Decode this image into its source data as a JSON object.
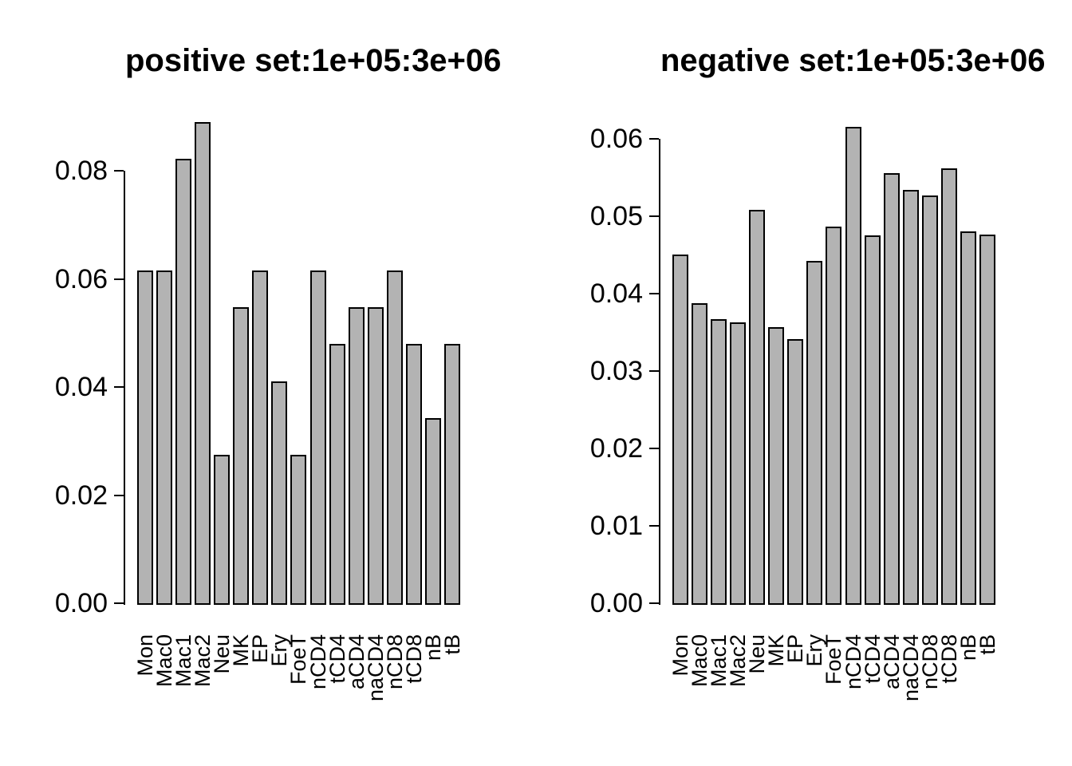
{
  "figure": {
    "background": "#ffffff",
    "bar_fill": "#b3b3b3",
    "bar_border": "#000000",
    "text_color": "#000000"
  },
  "chart_data": [
    {
      "type": "bar",
      "title": "positive set:1e+05:3e+06",
      "categories": [
        "Mon",
        "Mac0",
        "Mac1",
        "Mac2",
        "Neu",
        "MK",
        "EP",
        "Ery",
        "FoeT",
        "nCD4",
        "tCD4",
        "aCD4",
        "naCD4",
        "nCD8",
        "tCD8",
        "nB",
        "tB"
      ],
      "values": [
        0.0616,
        0.0616,
        0.0822,
        0.089,
        0.0274,
        0.0548,
        0.0616,
        0.0411,
        0.0274,
        0.0616,
        0.0479,
        0.0548,
        0.0548,
        0.0616,
        0.0479,
        0.0342,
        0.0479
      ],
      "xlabel": "",
      "ylabel": "",
      "ylim": [
        0,
        0.08
      ],
      "y_ticks": [
        0,
        0.02,
        0.04,
        0.06,
        0.08
      ],
      "y_tick_labels": [
        "0.00",
        "0.02",
        "0.04",
        "0.06",
        "0.08"
      ],
      "grid": "off",
      "legend": "none"
    },
    {
      "type": "bar",
      "title": "negative set:1e+05:3e+06",
      "categories": [
        "Mon",
        "Mac0",
        "Mac1",
        "Mac2",
        "Neu",
        "MK",
        "EP",
        "Ery",
        "FoeT",
        "nCD4",
        "tCD4",
        "aCD4",
        "naCD4",
        "nCD8",
        "tCD8",
        "nB",
        "tB"
      ],
      "values": [
        0.0451,
        0.0388,
        0.0367,
        0.0363,
        0.0508,
        0.0357,
        0.0341,
        0.0443,
        0.0487,
        0.0616,
        0.0475,
        0.0556,
        0.0534,
        0.0527,
        0.0562,
        0.0481,
        0.0477
      ],
      "xlabel": "",
      "ylabel": "",
      "ylim": [
        0,
        0.06
      ],
      "y_ticks": [
        0,
        0.01,
        0.02,
        0.03,
        0.04,
        0.05,
        0.06
      ],
      "y_tick_labels": [
        "0.00",
        "0.01",
        "0.02",
        "0.03",
        "0.04",
        "0.05",
        "0.06"
      ],
      "grid": "off",
      "legend": "none"
    }
  ]
}
